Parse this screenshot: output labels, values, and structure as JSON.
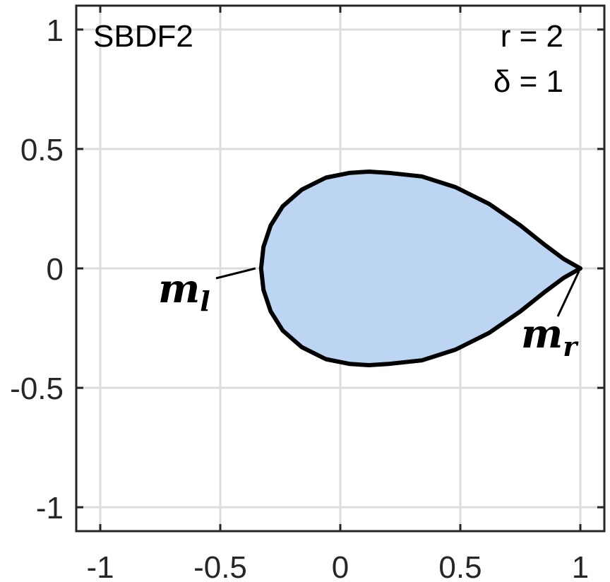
{
  "chart_data": {
    "type": "area",
    "title": "",
    "xlabel": "",
    "ylabel": "",
    "xlim": [
      -1.1,
      1.1
    ],
    "ylim": [
      -1.1,
      1.1
    ],
    "grid": true,
    "x_ticks": [
      -1,
      -0.5,
      0,
      0.5,
      1
    ],
    "y_ticks": [
      -1,
      -0.5,
      0,
      0.5,
      1
    ],
    "x_tick_labels": [
      "-1",
      "-0.5",
      "0",
      "0.5",
      "1"
    ],
    "y_tick_labels": [
      "-1",
      "-0.5",
      "0",
      "0.5",
      "1"
    ],
    "fill_color": "#bcd5f2",
    "line_color": "#000000",
    "curve": {
      "x": [
        1.0,
        0.93,
        0.85,
        0.75,
        0.62,
        0.48,
        0.34,
        0.2,
        0.12,
        0.04,
        -0.06,
        -0.16,
        -0.24,
        -0.29,
        -0.32,
        -0.33,
        -0.32,
        -0.29,
        -0.24,
        -0.16,
        -0.06,
        0.04,
        0.12,
        0.2,
        0.34,
        0.48,
        0.62,
        0.75,
        0.85,
        0.93,
        1.0
      ],
      "y": [
        0.0,
        0.04,
        0.1,
        0.18,
        0.27,
        0.34,
        0.385,
        0.4,
        0.405,
        0.4,
        0.38,
        0.33,
        0.26,
        0.18,
        0.09,
        0.0,
        -0.09,
        -0.18,
        -0.26,
        -0.33,
        -0.38,
        -0.4,
        -0.405,
        -0.4,
        -0.385,
        -0.34,
        -0.27,
        -0.18,
        -0.1,
        -0.04,
        0.0
      ]
    },
    "annotations": {
      "scheme": "SBDF2",
      "param_r": "r = 2",
      "param_delta": "δ = 1",
      "marker_left": {
        "base": "m",
        "sub": "l",
        "x": -0.33,
        "y": 0.0
      },
      "marker_right": {
        "base": "m",
        "sub": "r",
        "x": 1.0,
        "y": 0.0
      }
    }
  }
}
